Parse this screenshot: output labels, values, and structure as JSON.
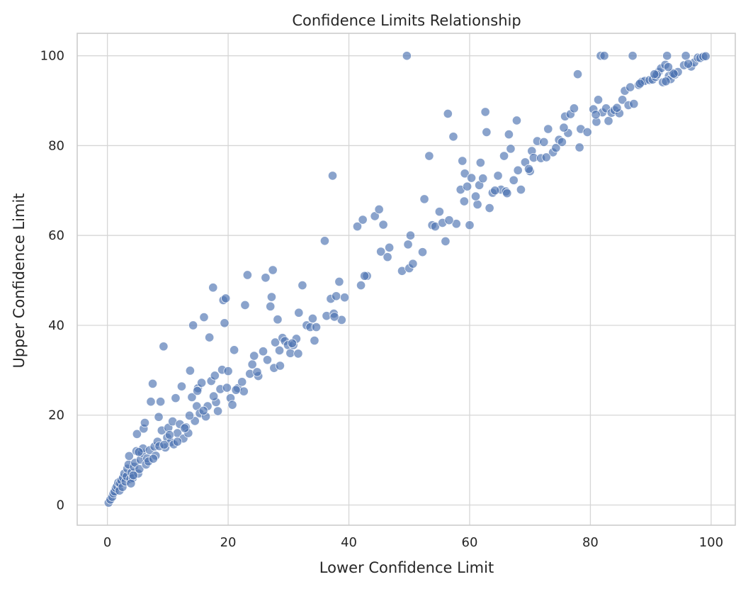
{
  "chart_data": {
    "type": "scatter",
    "title": "Confidence Limits Relationship",
    "xlabel": "Lower Confidence Limit",
    "ylabel": "Upper Confidence Limit",
    "xlim": [
      -5,
      104
    ],
    "ylim": [
      -4.5,
      105
    ],
    "xticks": [
      0,
      20,
      40,
      60,
      80,
      100
    ],
    "yticks": [
      0,
      20,
      40,
      60,
      80,
      100
    ],
    "grid": true,
    "legend": "none",
    "point_color": "#4c72b0",
    "point_opacity": 0.65,
    "point_edge_color": "#ffffff",
    "points": [
      [
        0.2,
        0.5
      ],
      [
        0.5,
        1.2
      ],
      [
        0.8,
        1.8
      ],
      [
        1.0,
        2.6
      ],
      [
        1.2,
        3.0
      ],
      [
        1.4,
        3.8
      ],
      [
        1.6,
        4.2
      ],
      [
        1.8,
        5.0
      ],
      [
        2.0,
        3.2
      ],
      [
        2.1,
        4.8
      ],
      [
        2.3,
        5.5
      ],
      [
        2.5,
        4.0
      ],
      [
        2.6,
        6.1
      ],
      [
        2.8,
        7.0
      ],
      [
        3.0,
        5.2
      ],
      [
        3.2,
        6.4
      ],
      [
        3.3,
        8.1
      ],
      [
        3.5,
        9.0
      ],
      [
        3.6,
        10.9
      ],
      [
        3.8,
        5.8
      ],
      [
        4.0,
        7.2
      ],
      [
        4.2,
        6.0
      ],
      [
        4.4,
        8.5
      ],
      [
        4.6,
        9.4
      ],
      [
        4.8,
        12.0
      ],
      [
        4.9,
        15.8
      ],
      [
        5.1,
        7.0
      ],
      [
        5.3,
        8.0
      ],
      [
        5.5,
        10.1
      ],
      [
        5.7,
        11.6
      ],
      [
        5.9,
        12.6
      ],
      [
        6.0,
        17.0
      ],
      [
        6.2,
        18.3
      ],
      [
        6.4,
        9.0
      ],
      [
        6.6,
        10.4
      ],
      [
        7.0,
        12.2
      ],
      [
        7.2,
        23.0
      ],
      [
        7.5,
        27.0
      ],
      [
        7.8,
        13.0
      ],
      [
        8.0,
        11.0
      ],
      [
        8.3,
        14.1
      ],
      [
        8.5,
        19.6
      ],
      [
        8.8,
        23.0
      ],
      [
        9.0,
        16.6
      ],
      [
        9.3,
        35.3
      ],
      [
        9.6,
        12.8
      ],
      [
        9.9,
        15.0
      ],
      [
        10.1,
        17.2
      ],
      [
        10.5,
        14.0
      ],
      [
        10.8,
        18.6
      ],
      [
        11.0,
        13.5
      ],
      [
        11.3,
        23.8
      ],
      [
        11.6,
        16.0
      ],
      [
        12.0,
        18.0
      ],
      [
        12.3,
        26.4
      ],
      [
        12.6,
        14.8
      ],
      [
        13.0,
        17.3
      ],
      [
        13.4,
        16.0
      ],
      [
        13.7,
        29.9
      ],
      [
        14.0,
        24.0
      ],
      [
        14.2,
        40.0
      ],
      [
        14.5,
        18.7
      ],
      [
        14.8,
        22.0
      ],
      [
        15.0,
        26.0
      ],
      [
        15.3,
        20.4
      ],
      [
        15.6,
        27.2
      ],
      [
        16.0,
        41.8
      ],
      [
        16.3,
        19.7
      ],
      [
        16.6,
        22.0
      ],
      [
        16.9,
        37.3
      ],
      [
        17.2,
        27.6
      ],
      [
        17.5,
        48.4
      ],
      [
        17.8,
        28.8
      ],
      [
        18.0,
        22.9
      ],
      [
        18.3,
        20.9
      ],
      [
        18.7,
        25.8
      ],
      [
        19.0,
        30.1
      ],
      [
        19.2,
        45.6
      ],
      [
        19.4,
        40.5
      ],
      [
        19.6,
        46.0
      ],
      [
        20.0,
        29.8
      ],
      [
        20.4,
        23.8
      ],
      [
        20.7,
        22.3
      ],
      [
        21.0,
        34.5
      ],
      [
        21.6,
        26.0
      ],
      [
        22.3,
        27.4
      ],
      [
        22.6,
        25.3
      ],
      [
        22.8,
        44.5
      ],
      [
        23.2,
        51.2
      ],
      [
        23.6,
        29.2
      ],
      [
        24.0,
        31.3
      ],
      [
        24.3,
        33.2
      ],
      [
        25.0,
        28.7
      ],
      [
        25.8,
        34.2
      ],
      [
        26.2,
        50.6
      ],
      [
        26.5,
        32.3
      ],
      [
        27.0,
        44.2
      ],
      [
        27.2,
        46.3
      ],
      [
        27.4,
        52.3
      ],
      [
        27.6,
        30.5
      ],
      [
        27.8,
        36.2
      ],
      [
        28.2,
        41.3
      ],
      [
        28.5,
        34.4
      ],
      [
        29.0,
        37.2
      ],
      [
        29.4,
        36.5
      ],
      [
        29.9,
        35.6
      ],
      [
        30.3,
        33.8
      ],
      [
        30.8,
        35.6
      ],
      [
        31.3,
        37.0
      ],
      [
        31.7,
        42.8
      ],
      [
        32.3,
        48.9
      ],
      [
        33.0,
        40.0
      ],
      [
        33.6,
        39.6
      ],
      [
        34.0,
        41.5
      ],
      [
        34.3,
        36.6
      ],
      [
        36.0,
        58.8
      ],
      [
        36.3,
        42.1
      ],
      [
        37.0,
        45.9
      ],
      [
        37.3,
        73.3
      ],
      [
        37.5,
        42.6
      ],
      [
        37.9,
        46.5
      ],
      [
        38.4,
        49.7
      ],
      [
        38.8,
        41.2
      ],
      [
        39.3,
        46.2
      ],
      [
        41.4,
        62.0
      ],
      [
        42.0,
        48.9
      ],
      [
        42.3,
        63.5
      ],
      [
        43.0,
        51.0
      ],
      [
        44.3,
        64.3
      ],
      [
        45.0,
        65.8
      ],
      [
        45.3,
        56.4
      ],
      [
        45.7,
        62.4
      ],
      [
        46.4,
        55.2
      ],
      [
        46.7,
        57.3
      ],
      [
        48.8,
        52.1
      ],
      [
        49.6,
        100.0
      ],
      [
        49.8,
        58.0
      ],
      [
        50.0,
        52.7
      ],
      [
        50.2,
        60.0
      ],
      [
        52.2,
        56.3
      ],
      [
        52.5,
        68.1
      ],
      [
        53.3,
        77.7
      ],
      [
        53.8,
        62.3
      ],
      [
        54.3,
        62.0
      ],
      [
        55.0,
        65.3
      ],
      [
        55.5,
        62.8
      ],
      [
        56.0,
        58.7
      ],
      [
        56.4,
        87.1
      ],
      [
        57.3,
        82.0
      ],
      [
        57.8,
        62.6
      ],
      [
        58.5,
        70.2
      ],
      [
        58.8,
        76.6
      ],
      [
        59.2,
        73.8
      ],
      [
        59.6,
        70.9
      ],
      [
        60.0,
        62.3
      ],
      [
        60.3,
        72.8
      ],
      [
        61.3,
        66.9
      ],
      [
        61.6,
        71.2
      ],
      [
        61.8,
        76.2
      ],
      [
        62.2,
        72.7
      ],
      [
        62.6,
        87.5
      ],
      [
        62.8,
        83.0
      ],
      [
        63.3,
        66.1
      ],
      [
        63.8,
        69.5
      ],
      [
        64.7,
        73.3
      ],
      [
        65.2,
        70.2
      ],
      [
        65.7,
        77.7
      ],
      [
        66.0,
        69.8
      ],
      [
        66.5,
        82.5
      ],
      [
        66.8,
        79.3
      ],
      [
        67.3,
        72.3
      ],
      [
        67.8,
        85.6
      ],
      [
        68.0,
        74.5
      ],
      [
        68.5,
        70.2
      ],
      [
        69.2,
        76.3
      ],
      [
        70.0,
        74.3
      ],
      [
        70.3,
        78.8
      ],
      [
        70.6,
        77.3
      ],
      [
        71.2,
        81.0
      ],
      [
        71.8,
        77.2
      ],
      [
        72.3,
        80.8
      ],
      [
        73.0,
        83.7
      ],
      [
        73.8,
        78.5
      ],
      [
        74.3,
        79.5
      ],
      [
        74.8,
        81.3
      ],
      [
        75.3,
        80.8
      ],
      [
        75.8,
        86.5
      ],
      [
        76.3,
        82.8
      ],
      [
        76.7,
        87.0
      ],
      [
        77.3,
        88.3
      ],
      [
        77.9,
        95.9
      ],
      [
        78.4,
        83.7
      ],
      [
        79.5,
        83.0
      ],
      [
        80.5,
        88.1
      ],
      [
        81.0,
        85.3
      ],
      [
        81.3,
        90.2
      ],
      [
        81.7,
        100.0
      ],
      [
        82.0,
        87.4
      ],
      [
        82.3,
        100.0
      ],
      [
        82.6,
        88.3
      ],
      [
        83.0,
        85.5
      ],
      [
        83.5,
        87.3
      ],
      [
        84.0,
        87.9
      ],
      [
        84.8,
        87.2
      ],
      [
        85.3,
        90.2
      ],
      [
        85.7,
        92.2
      ],
      [
        86.3,
        89.0
      ],
      [
        86.6,
        93.0
      ],
      [
        87.0,
        100.0
      ],
      [
        87.2,
        89.3
      ],
      [
        88.0,
        93.5
      ],
      [
        88.5,
        94.2
      ],
      [
        89.0,
        94.4
      ],
      [
        89.8,
        94.6
      ],
      [
        90.3,
        94.7
      ],
      [
        90.8,
        95.3
      ],
      [
        91.3,
        96.4
      ],
      [
        91.7,
        97.2
      ],
      [
        92.0,
        94.1
      ],
      [
        92.4,
        98.0
      ],
      [
        92.7,
        100.0
      ],
      [
        93.0,
        95.5
      ],
      [
        93.3,
        94.8
      ],
      [
        93.6,
        96.2
      ],
      [
        94.0,
        95.8
      ],
      [
        94.5,
        96.4
      ],
      [
        95.5,
        97.9
      ],
      [
        95.8,
        100.0
      ],
      [
        96.7,
        97.6
      ],
      [
        97.2,
        98.5
      ],
      [
        97.8,
        99.6
      ],
      [
        98.2,
        99.5
      ],
      [
        98.7,
        99.8
      ],
      [
        99.1,
        99.9
      ],
      [
        92.5,
        94.3
      ],
      [
        91.0,
        95.8
      ],
      [
        93.8,
        96.0
      ],
      [
        96.2,
        98.2
      ],
      [
        3.9,
        4.8
      ],
      [
        4.3,
        6.6
      ],
      [
        5.2,
        11.8
      ],
      [
        6.8,
        9.7
      ],
      [
        7.6,
        10.3
      ],
      [
        8.6,
        13.1
      ],
      [
        9.4,
        13.4
      ],
      [
        10.3,
        15.6
      ],
      [
        11.6,
        14.1
      ],
      [
        12.8,
        17.1
      ],
      [
        13.6,
        19.9
      ],
      [
        14.9,
        25.4
      ],
      [
        15.9,
        21.0
      ],
      [
        17.6,
        24.2
      ],
      [
        19.8,
        26.1
      ],
      [
        21.3,
        25.6
      ],
      [
        24.8,
        29.6
      ],
      [
        28.6,
        31.0
      ],
      [
        30.6,
        36.0
      ],
      [
        31.6,
        33.7
      ],
      [
        34.6,
        39.6
      ],
      [
        37.6,
        41.9
      ],
      [
        42.6,
        51.0
      ],
      [
        50.6,
        53.7
      ],
      [
        56.6,
        63.4
      ],
      [
        59.1,
        67.6
      ],
      [
        61.0,
        68.7
      ],
      [
        64.2,
        70.0
      ],
      [
        66.2,
        69.4
      ],
      [
        69.8,
        74.8
      ],
      [
        72.7,
        77.4
      ],
      [
        75.6,
        84.0
      ],
      [
        78.2,
        79.6
      ],
      [
        80.9,
        86.9
      ],
      [
        84.4,
        88.4
      ],
      [
        88.2,
        93.8
      ],
      [
        90.6,
        95.9
      ],
      [
        92.9,
        97.5
      ]
    ]
  }
}
